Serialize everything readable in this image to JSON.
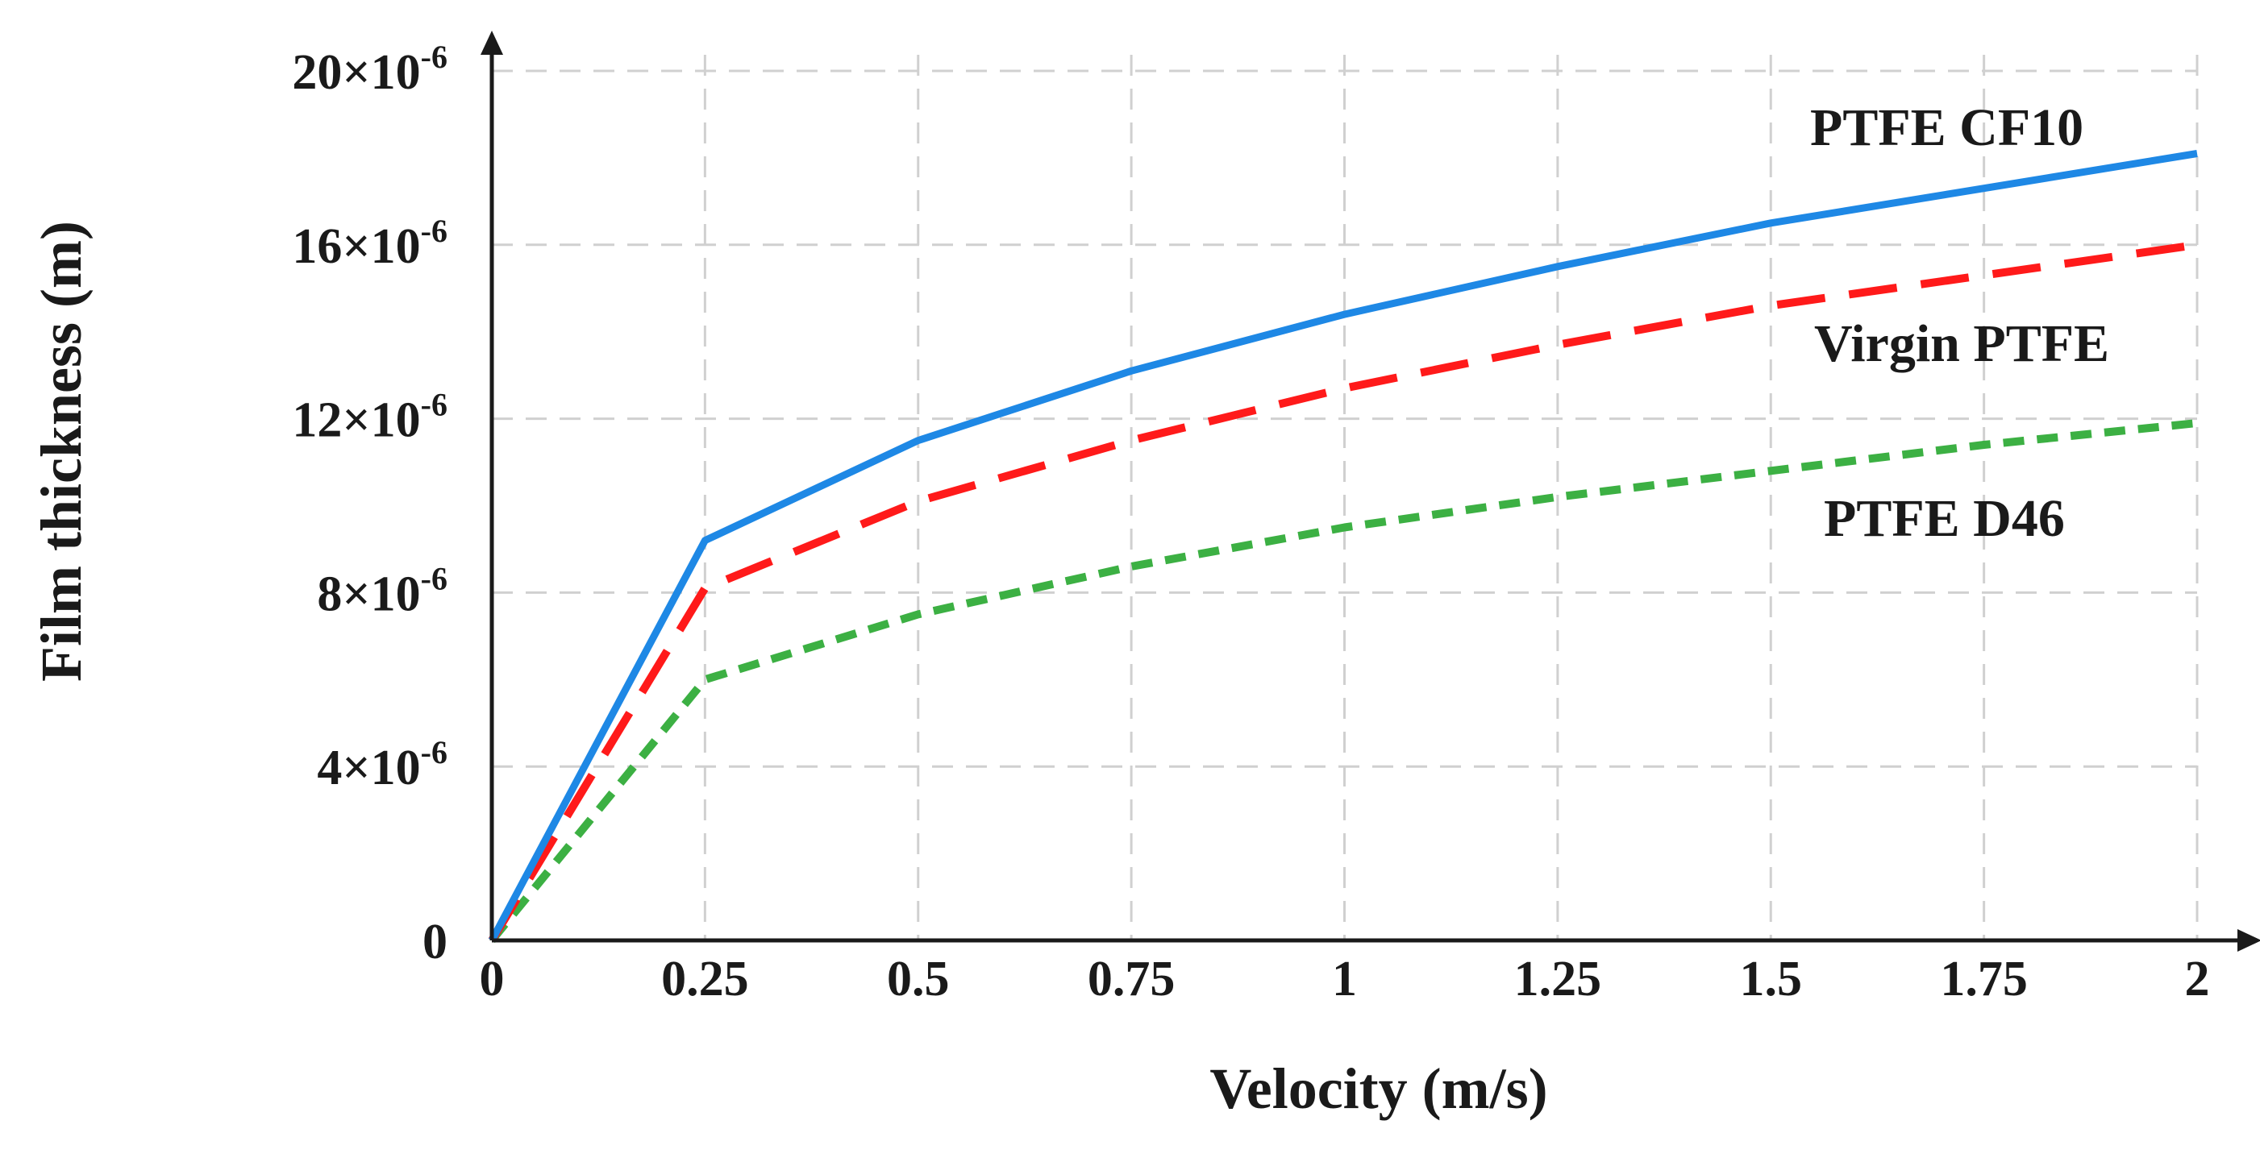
{
  "chart_data": {
    "type": "line",
    "title": "",
    "xlabel": "Velocity (m/s)",
    "ylabel": "Film thickness (m)",
    "xlim": [
      0,
      2
    ],
    "ylim": [
      0,
      2e-05
    ],
    "x": [
      0,
      0.25,
      0.5,
      0.75,
      1,
      1.25,
      1.5,
      1.75,
      2
    ],
    "x_tick_labels": [
      "0",
      "0.25",
      "0.5",
      "0.75",
      "1",
      "1.25",
      "1.5",
      "1.75",
      "2"
    ],
    "y_ticks": [
      0,
      4e-06,
      8e-06,
      1.2e-05,
      1.6e-05,
      2e-05
    ],
    "y_tick_labels": [
      {
        "mantissa": "0",
        "exponent": ""
      },
      {
        "mantissa": "4×10",
        "exponent": "-6"
      },
      {
        "mantissa": "8×10",
        "exponent": "-6"
      },
      {
        "mantissa": "12×10",
        "exponent": "-6"
      },
      {
        "mantissa": "16×10",
        "exponent": "-6"
      },
      {
        "mantissa": "20×10",
        "exponent": "-6"
      }
    ],
    "grid": true,
    "series": [
      {
        "name": "PTFE CF10",
        "color": "#1e88e5",
        "style": "solid",
        "values": [
          0,
          9.2e-06,
          1.15e-05,
          1.31e-05,
          1.44e-05,
          1.55e-05,
          1.65e-05,
          1.73e-05,
          1.81e-05
        ]
      },
      {
        "name": "Virgin PTFE",
        "color": "#ff1a1a",
        "style": "dashed",
        "values": [
          0,
          8.1e-06,
          1.01e-05,
          1.15e-05,
          1.27e-05,
          1.37e-05,
          1.46e-05,
          1.53e-05,
          1.6e-05
        ]
      },
      {
        "name": "PTFE D46",
        "color": "#3cb043",
        "style": "dotted",
        "values": [
          0,
          6e-06,
          7.5e-06,
          8.6e-06,
          9.5e-06,
          1.02e-05,
          1.08e-05,
          1.14e-05,
          1.19e-05
        ]
      }
    ]
  }
}
